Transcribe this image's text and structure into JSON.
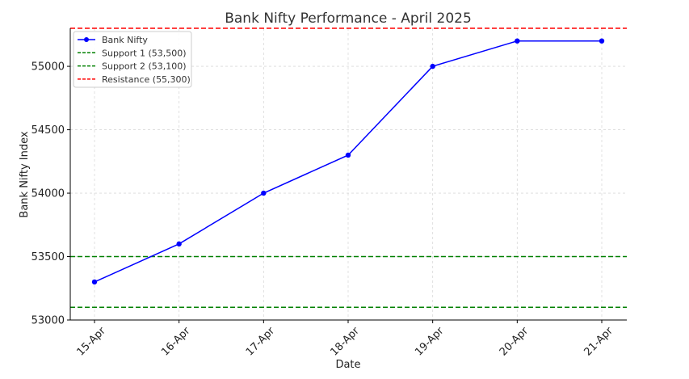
{
  "chart_data": {
    "type": "line",
    "title": "Bank Nifty Performance - April 2025",
    "xlabel": "Date",
    "ylabel": "Bank Nifty Index",
    "categories": [
      "15-Apr",
      "16-Apr",
      "17-Apr",
      "18-Apr",
      "19-Apr",
      "20-Apr",
      "21-Apr"
    ],
    "series": [
      {
        "name": "Bank Nifty",
        "values": [
          53300,
          53600,
          54000,
          54300,
          55000,
          55200,
          55200
        ],
        "color": "#0000ff"
      }
    ],
    "reference_lines": [
      {
        "name": "Support 1 (53,500)",
        "value": 53500,
        "color": "#008000"
      },
      {
        "name": "Support 2 (53,100)",
        "value": 53100,
        "color": "#008000"
      },
      {
        "name": "Resistance (55,300)",
        "value": 55300,
        "color": "#ff0000"
      }
    ],
    "yticks": [
      53000,
      53500,
      54000,
      54500,
      55000
    ],
    "ylim": [
      53000,
      55300
    ],
    "grid": true,
    "legend_position": "top-left"
  }
}
